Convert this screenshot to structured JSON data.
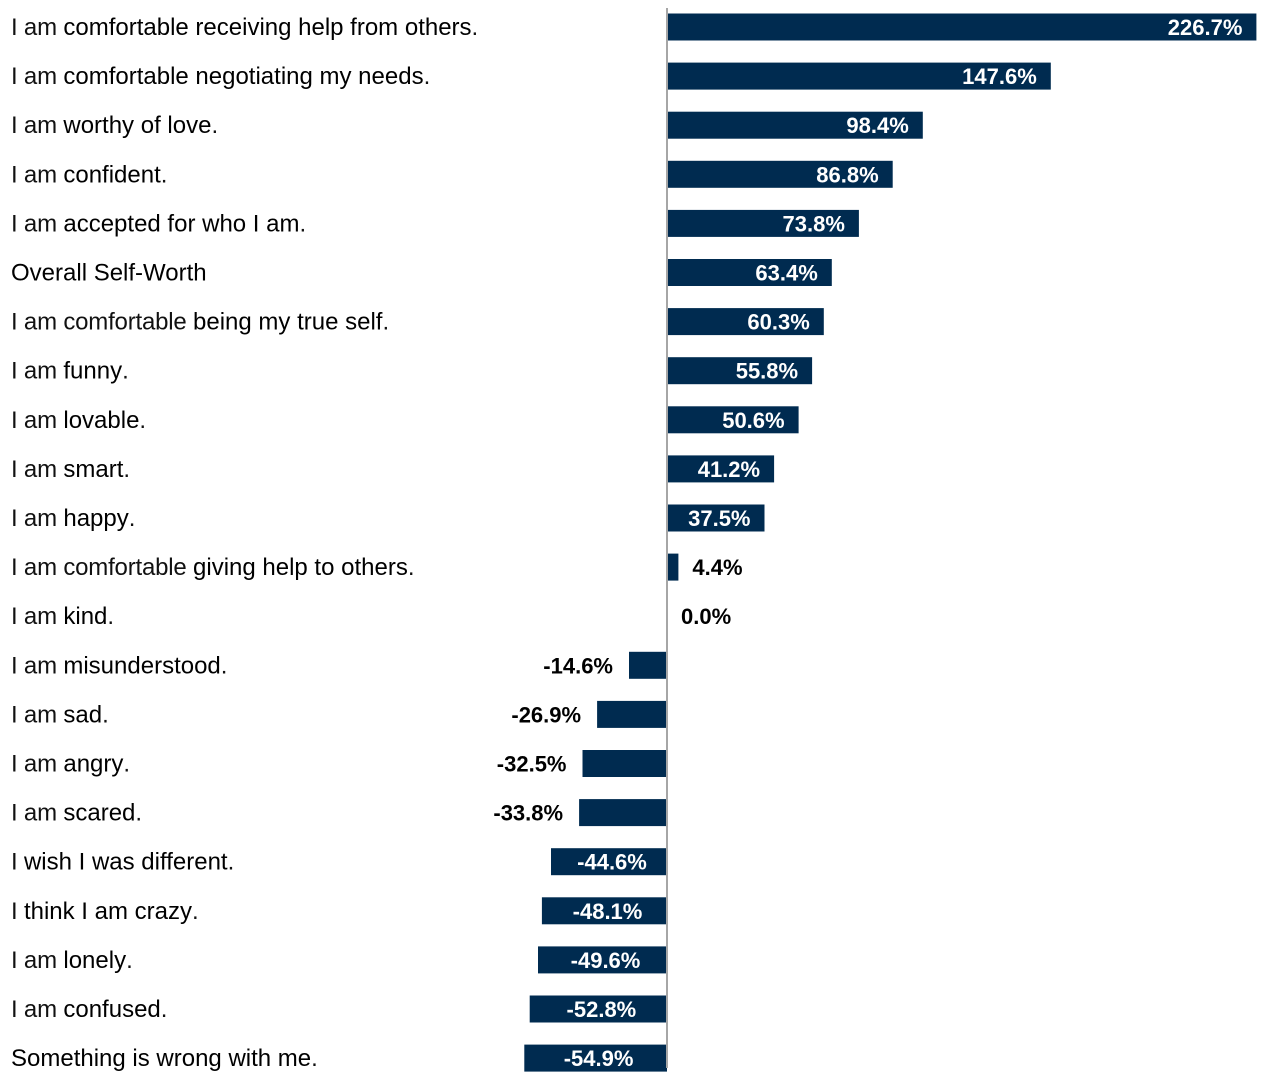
{
  "chart_data": {
    "type": "bar",
    "orientation": "horizontal",
    "bar_color": "#002b50",
    "axis_color": "#a6a6a6",
    "inside_label_color": "#ffffff",
    "outside_label_color": "#000000",
    "xlim": [
      -60,
      230
    ],
    "categories": [
      "I am comfortable receiving help from others.",
      "I am comfortable negotiating my needs.",
      "I am worthy of love.",
      "I am confident.",
      "I am accepted for who I am.",
      "Overall Self-Worth",
      "I am comfortable being my true self.",
      "I am funny.",
      "I am lovable.",
      "I am smart.",
      "I am happy.",
      "I am comfortable giving help to others.",
      "I am kind.",
      "I am misunderstood.",
      "I am sad.",
      "I am angry.",
      "I am scared.",
      "I wish I was different.",
      "I think I am crazy.",
      "I am lonely.",
      "I am confused.",
      "Something is wrong with me."
    ],
    "label_parts": [
      [
        {
          "t": "I am ",
          "s": "light"
        },
        {
          "t": "comfortable receiving help from others",
          "s": "bold"
        },
        {
          "t": ".",
          "s": "light"
        }
      ],
      [
        {
          "t": "I am ",
          "s": "light"
        },
        {
          "t": "comfortable negotiating my needs",
          "s": "bold"
        },
        {
          "t": ".",
          "s": "light"
        }
      ],
      [
        {
          "t": "I am ",
          "s": "light"
        },
        {
          "t": "worthy of love",
          "s": "bold"
        },
        {
          "t": ".",
          "s": "light"
        }
      ],
      [
        {
          "t": "I am ",
          "s": "light"
        },
        {
          "t": "confident",
          "s": "bold"
        },
        {
          "t": ".",
          "s": "light"
        }
      ],
      [
        {
          "t": "I am ",
          "s": "light"
        },
        {
          "t": "accepted for who I am",
          "s": "bold"
        },
        {
          "t": ".",
          "s": "light"
        }
      ],
      [
        {
          "t": "Overall Self-Worth",
          "s": "bold"
        }
      ],
      [
        {
          "t": "I am comfortable ",
          "s": "light"
        },
        {
          "t": "being my true self",
          "s": "bold"
        },
        {
          "t": ".",
          "s": "light"
        }
      ],
      [
        {
          "t": "I am ",
          "s": "light"
        },
        {
          "t": "funny",
          "s": "bold"
        },
        {
          "t": ".",
          "s": "light"
        }
      ],
      [
        {
          "t": "I am ",
          "s": "light"
        },
        {
          "t": "lovable",
          "s": "bold"
        },
        {
          "t": ".",
          "s": "light"
        }
      ],
      [
        {
          "t": "I am ",
          "s": "light"
        },
        {
          "t": "smart",
          "s": "bold"
        },
        {
          "t": ".",
          "s": "light"
        }
      ],
      [
        {
          "t": "I am ",
          "s": "light"
        },
        {
          "t": "happy",
          "s": "bold"
        },
        {
          "t": ".",
          "s": "light"
        }
      ],
      [
        {
          "t": "I am comfortable ",
          "s": "light"
        },
        {
          "t": "giving help to others",
          "s": "bold"
        },
        {
          "t": ".",
          "s": "light"
        }
      ],
      [
        {
          "t": "I am ",
          "s": "light"
        },
        {
          "t": "kind",
          "s": "bold"
        },
        {
          "t": ".",
          "s": "light"
        }
      ],
      [
        {
          "t": "I am ",
          "s": "light"
        },
        {
          "t": "misunderstood",
          "s": "bold"
        },
        {
          "t": ".",
          "s": "light"
        }
      ],
      [
        {
          "t": "I am ",
          "s": "light"
        },
        {
          "t": "sad",
          "s": "bold"
        },
        {
          "t": ".",
          "s": "light"
        }
      ],
      [
        {
          "t": "I am ",
          "s": "light"
        },
        {
          "t": "angry",
          "s": "bold"
        },
        {
          "t": ".",
          "s": "light"
        }
      ],
      [
        {
          "t": "I am ",
          "s": "light"
        },
        {
          "t": "scared",
          "s": "bold"
        },
        {
          "t": ".",
          "s": "light"
        }
      ],
      [
        {
          "t": "I ",
          "s": "light"
        },
        {
          "t": "wish I was different",
          "s": "bold"
        },
        {
          "t": ".",
          "s": "light"
        }
      ],
      [
        {
          "t": "I ",
          "s": "light"
        },
        {
          "t": "think I am crazy",
          "s": "bold"
        },
        {
          "t": ".",
          "s": "light"
        }
      ],
      [
        {
          "t": "I am ",
          "s": "light"
        },
        {
          "t": "lonely",
          "s": "bold"
        },
        {
          "t": ".",
          "s": "light"
        }
      ],
      [
        {
          "t": "I am ",
          "s": "light"
        },
        {
          "t": "confused",
          "s": "bold"
        },
        {
          "t": ".",
          "s": "light"
        }
      ],
      [
        {
          "t": "Something is wrong with me",
          "s": "bold"
        },
        {
          "t": ".",
          "s": "light"
        }
      ]
    ],
    "values": [
      226.7,
      147.6,
      98.4,
      86.8,
      73.8,
      63.4,
      60.3,
      55.8,
      50.6,
      41.2,
      37.5,
      4.4,
      0.0,
      -14.6,
      -26.9,
      -32.5,
      -33.8,
      -44.6,
      -48.1,
      -49.6,
      -52.8,
      -54.9
    ],
    "value_labels": [
      "226.7%",
      "147.6%",
      "98.4%",
      "86.8%",
      "73.8%",
      "63.4%",
      "60.3%",
      "55.8%",
      "50.6%",
      "41.2%",
      "37.5%",
      "4.4%",
      "0.0%",
      "-14.6%",
      "-26.9%",
      "-32.5%",
      "-33.8%",
      "-44.6%",
      "-48.1%",
      "-49.6%",
      "-52.8%",
      "-54.9%"
    ],
    "label_inside_bar": [
      true,
      true,
      true,
      true,
      true,
      true,
      true,
      true,
      true,
      true,
      true,
      false,
      false,
      false,
      false,
      false,
      false,
      true,
      true,
      true,
      true,
      true
    ],
    "title": "",
    "xlabel": "",
    "ylabel": "",
    "grid": false,
    "legend": "none"
  }
}
